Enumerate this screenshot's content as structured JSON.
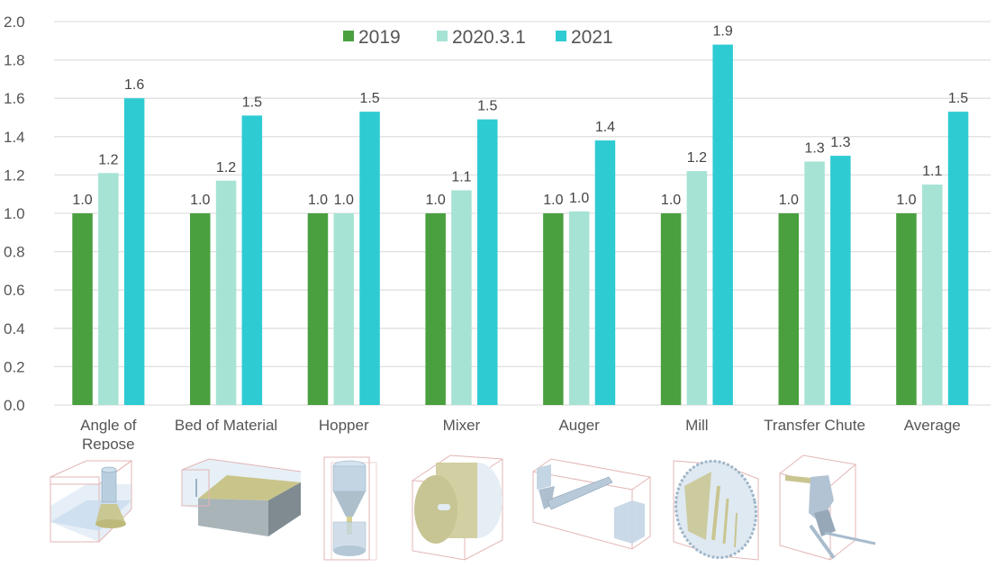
{
  "chart_data": {
    "type": "bar",
    "title": "",
    "xlabel": "",
    "ylabel": "",
    "ylim": [
      0,
      2.0
    ],
    "yticks": [
      "0.0",
      "0.2",
      "0.4",
      "0.6",
      "0.8",
      "1.0",
      "1.2",
      "1.4",
      "1.6",
      "1.8",
      "2.0"
    ],
    "grid": true,
    "legend_position": "top-center",
    "categories": [
      "Angle of Repose",
      "Bed of Material",
      "Hopper",
      "Mixer",
      "Auger",
      "Mill",
      "Transfer Chute",
      "Average"
    ],
    "category_lines": [
      [
        "Angle of",
        "Repose"
      ],
      [
        "Bed of Material"
      ],
      [
        "Hopper"
      ],
      [
        "Mixer"
      ],
      [
        "Auger"
      ],
      [
        "Mill"
      ],
      [
        "Transfer Chute"
      ],
      [
        "Average"
      ]
    ],
    "series": [
      {
        "name": "2019",
        "color": "#4aa03f",
        "values": [
          1.0,
          1.0,
          1.0,
          1.0,
          1.0,
          1.0,
          1.0,
          1.0
        ],
        "labels": [
          "1.0",
          "1.0",
          "1.0",
          "1.0",
          "1.0",
          "1.0",
          "1.0",
          "1.0"
        ]
      },
      {
        "name": "2020.3.1",
        "color": "#a6e3d4",
        "values": [
          1.21,
          1.17,
          1.0,
          1.12,
          1.01,
          1.22,
          1.27,
          1.15
        ],
        "labels": [
          "1.2",
          "1.2",
          "1.0",
          "1.1",
          "1.0",
          "1.2",
          "1.3",
          "1.1"
        ]
      },
      {
        "name": "2021",
        "color": "#2ecbd3",
        "values": [
          1.6,
          1.51,
          1.53,
          1.49,
          1.38,
          1.88,
          1.3,
          1.53
        ],
        "labels": [
          "1.6",
          "1.5",
          "1.5",
          "1.5",
          "1.4",
          "1.9",
          "1.3",
          "1.5"
        ]
      }
    ]
  },
  "illustrations": [
    "angle-of-repose-render",
    "bed-of-material-render",
    "hopper-render",
    "mixer-render",
    "auger-render",
    "mill-render",
    "transfer-chute-render"
  ]
}
